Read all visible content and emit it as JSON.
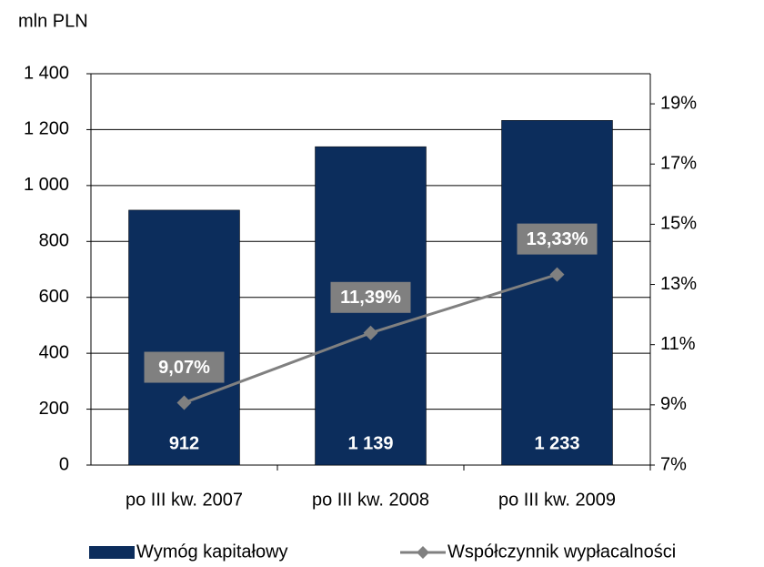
{
  "chart_data": {
    "type": "bar_line",
    "y_label": "mln PLN",
    "categories": [
      "po III kw. 2007",
      "po III kw. 2008",
      "po III kw. 2009"
    ],
    "series": [
      {
        "name": "Wymóg kapitałowy",
        "type": "bar",
        "color": "#0c2d5c",
        "values": [
          912,
          1139,
          1233
        ],
        "value_labels": [
          "912",
          "1 139",
          "1 233"
        ]
      },
      {
        "name": "Współczynnik wypłacalności",
        "type": "line",
        "axis": "y2",
        "color": "#808080",
        "values": [
          9.07,
          11.39,
          13.33
        ],
        "value_labels": [
          "9,07%",
          "11,39%",
          "13,33%"
        ]
      }
    ],
    "ylim": [
      0,
      1400
    ],
    "yticks": [
      0,
      200,
      400,
      600,
      800,
      {
        "value": 1000,
        "label": "1 000"
      },
      {
        "value": 1200,
        "label": "1 200"
      },
      {
        "value": 1400,
        "label": "1 400"
      }
    ],
    "y2lim": [
      7,
      20
    ],
    "y2ticks": [
      {
        "value": 7,
        "label": "7%"
      },
      {
        "value": 9,
        "label": "9%"
      },
      {
        "value": 11,
        "label": "11%"
      },
      {
        "value": 13,
        "label": "13%"
      },
      {
        "value": 15,
        "label": "15%"
      },
      {
        "value": 17,
        "label": "17%"
      },
      {
        "value": 19,
        "label": "19%"
      }
    ],
    "grid": true,
    "legend": "bottom"
  }
}
